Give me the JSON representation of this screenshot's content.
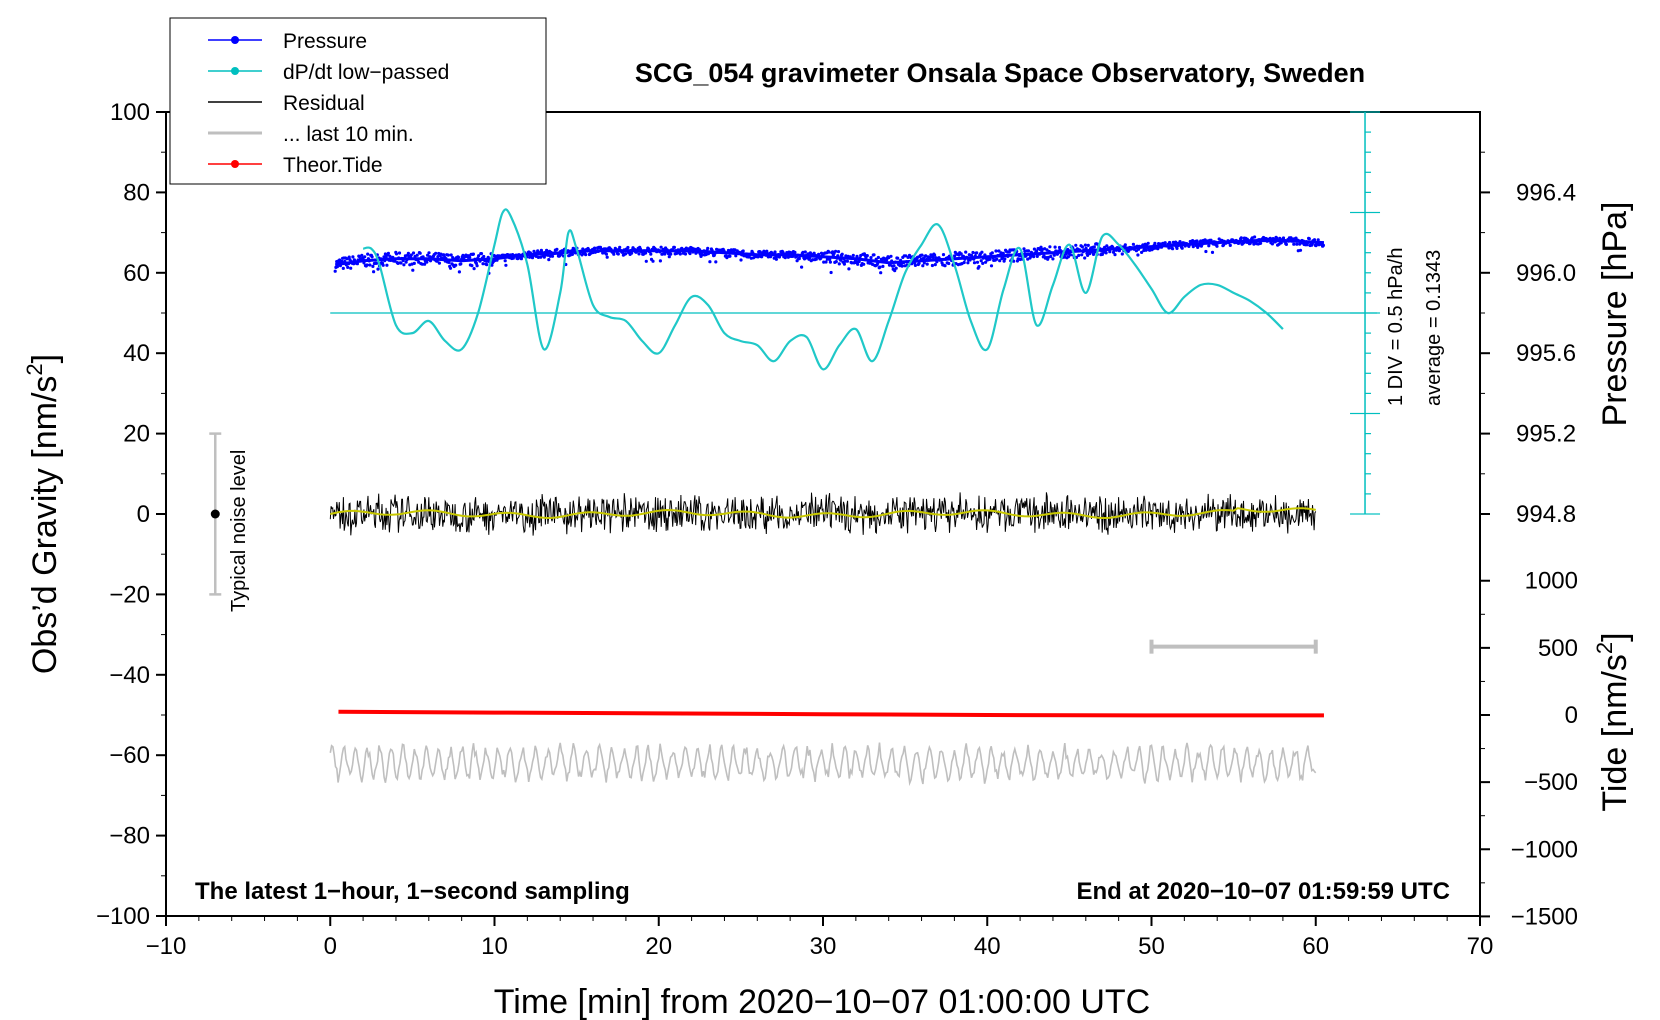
{
  "chart_data": {
    "type": "line",
    "title": "SCG_054 gravimeter Onsala Space Observatory, Sweden",
    "xlabel": "Time [min] from 2020−10−07 01:00:00 UTC",
    "ylabel_left": "Obs’d Gravity [nm/s²]",
    "ylabel_left_parts": {
      "main": "Obs’d Gravity [nm/s",
      "sup": "2",
      "end": "]"
    },
    "ylabel_right_pressure": "Pressure [hPa]",
    "ylabel_right_tide": "Tide [nm/s²]",
    "ylabel_right_tide_parts": {
      "main": "Tide [nm/s",
      "sup": "2",
      "end": "]"
    },
    "xlim": [
      -10,
      70
    ],
    "ylim": [
      -100,
      100
    ],
    "x_ticks": [
      -10,
      0,
      10,
      20,
      30,
      40,
      50,
      60,
      70
    ],
    "x_tick_labels": [
      "−10",
      "0",
      "10",
      "20",
      "30",
      "40",
      "50",
      "60",
      "70"
    ],
    "y_ticks": [
      -100,
      -80,
      -60,
      -40,
      -20,
      0,
      20,
      40,
      60,
      80,
      100
    ],
    "y_tick_labels": [
      "−100",
      "−80",
      "−60",
      "−40",
      "−20",
      "0",
      "20",
      "40",
      "60",
      "80",
      "100"
    ],
    "pressure_axis": {
      "range_hPa": [
        994.4,
        996.8
      ],
      "ticks": [
        994.8,
        995.2,
        995.6,
        996.0,
        996.4
      ],
      "tick_labels": [
        "994.8",
        "995.2",
        "995.6",
        "996.0",
        "996.4"
      ]
    },
    "tide_axis": {
      "range": [
        -1500,
        1500
      ],
      "ticks": [
        -1500,
        -1000,
        -500,
        0,
        500,
        1000
      ],
      "tick_labels": [
        "−1500",
        "−1000",
        "−500",
        "0",
        "500",
        "1000"
      ]
    },
    "corner_left": "The latest 1−hour, 1−second sampling",
    "corner_right": "End at 2020−10−07 01:59:59 UTC",
    "noise_label": "Typical noise level",
    "noise_bar": {
      "x": -7,
      "center": 0,
      "half_range": 20
    },
    "dpdt_scale_label": "1 DIV = 0.5 hPa/h",
    "average_label": "average = 0.1343",
    "dpdt_axis": {
      "x": 63,
      "y_bottom": 0,
      "y_top": 100,
      "minor_step": 5,
      "major_step": 25,
      "baseline_y": 50
    },
    "last10_marker": {
      "x_start": 50,
      "x_end": 60,
      "y": -33
    },
    "legend": [
      {
        "label": "Pressure",
        "color": "#0000ff",
        "marker": true
      },
      {
        "label": "dP/dt low−passed",
        "color": "#00bfbf",
        "marker": true
      },
      {
        "label": "Residual",
        "color": "#000000",
        "marker": false
      },
      {
        "label": "... last 10 min.",
        "color": "#bfbfbf",
        "marker": false
      },
      {
        "label": "Theor.Tide",
        "color": "#ff0000",
        "marker": true
      }
    ],
    "series": [
      {
        "name": "Pressure",
        "color": "#0000ff",
        "x": [
          0.3,
          2,
          4,
          6,
          8,
          10,
          12,
          14,
          16,
          18,
          20,
          22,
          24,
          26,
          28,
          30,
          32,
          34,
          36,
          38,
          40,
          42,
          44,
          46,
          48,
          50,
          52,
          54,
          56,
          58,
          60.5
        ],
        "y": [
          62,
          63,
          63.5,
          63.5,
          63,
          63.5,
          64.5,
          65,
          65.5,
          65.5,
          65.5,
          65.5,
          65,
          64.5,
          64.5,
          64,
          63.5,
          62.5,
          63,
          63.5,
          64,
          64.5,
          65,
          65.5,
          66,
          66.5,
          67,
          67.5,
          68,
          68,
          67.5
        ]
      },
      {
        "name": "dP/dt low-passed",
        "color": "#00bfbf",
        "x": [
          2,
          2.5,
          3,
          4,
          5,
          6,
          7,
          8,
          9,
          10,
          10.5,
          11,
          12,
          13,
          14,
          14.5,
          15,
          16,
          17,
          18,
          19,
          20,
          21,
          22,
          23,
          24,
          25,
          26,
          27,
          28,
          29,
          30,
          31,
          32,
          33,
          34,
          35,
          36,
          37,
          38,
          39,
          40,
          41,
          42,
          43,
          44,
          45,
          46,
          47,
          48,
          49,
          50,
          51,
          52,
          53,
          54,
          55,
          56,
          57,
          58
        ],
        "y": [
          66,
          66,
          62,
          47,
          45,
          48,
          43,
          41,
          50,
          67,
          75,
          74,
          62,
          41,
          55,
          70,
          66,
          52,
          49,
          48,
          43,
          40,
          47,
          54,
          52,
          45,
          43,
          42,
          38,
          43,
          44,
          36,
          42,
          46,
          38,
          48,
          60,
          67,
          72,
          62,
          48,
          41,
          56,
          66,
          47,
          57,
          67,
          55,
          69,
          67,
          62,
          56,
          50,
          54,
          57,
          57,
          55,
          53,
          50,
          46
        ]
      },
      {
        "name": "Residual",
        "color": "#000000",
        "x_range": [
          0,
          60
        ],
        "amplitude": 5,
        "mean": 0
      },
      {
        "name": "Residual smoothed",
        "color": "#c8c800",
        "x": [
          0,
          5,
          10,
          15,
          20,
          25,
          30,
          35,
          40,
          45,
          50,
          55,
          60
        ],
        "y": [
          0,
          0.5,
          -0.5,
          0.5,
          -0.5,
          0,
          0.5,
          0,
          0.5,
          0,
          -0.5,
          1,
          0.5
        ]
      },
      {
        "name": "... last 10 min.",
        "color": "#bfbfbf",
        "x_range": [
          0,
          60
        ],
        "mean": -62,
        "amplitude": 4
      },
      {
        "name": "Theor.Tide",
        "color": "#ff0000",
        "x": [
          0.5,
          10,
          20,
          30,
          40,
          50,
          60.5
        ],
        "y": [
          -49.2,
          -49.4,
          -49.6,
          -49.8,
          -50.0,
          -50.1,
          -50.1
        ]
      }
    ]
  }
}
